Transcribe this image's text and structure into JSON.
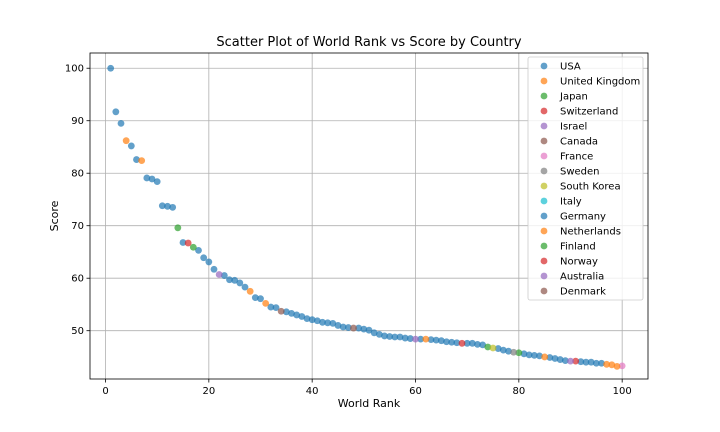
{
  "chart_data": {
    "type": "scatter",
    "title": "Scatter Plot of World Rank vs Score by Country",
    "xlabel": "World Rank",
    "ylabel": "Score",
    "xlim": [
      -3,
      105
    ],
    "ylim": [
      40.8,
      102.9
    ],
    "xticks": [
      0,
      20,
      40,
      60,
      80,
      100
    ],
    "yticks": [
      50,
      60,
      70,
      80,
      90,
      100
    ],
    "grid": true,
    "legend_position": "upper-right",
    "series": [
      {
        "name": "USA",
        "color": "#1f77b4",
        "points": [
          [
            1,
            100
          ],
          [
            2,
            91.7
          ],
          [
            3,
            89.5
          ],
          [
            5,
            85.2
          ],
          [
            6,
            82.6
          ],
          [
            8,
            79.1
          ],
          [
            9,
            78.9
          ],
          [
            10,
            78.4
          ],
          [
            11,
            73.8
          ],
          [
            12,
            73.7
          ],
          [
            13,
            73.5
          ],
          [
            15,
            66.8
          ],
          [
            18,
            65.3
          ],
          [
            19,
            63.9
          ],
          [
            20,
            63.1
          ],
          [
            21,
            61.7
          ],
          [
            23,
            60.5
          ],
          [
            24,
            59.7
          ],
          [
            25,
            59.6
          ],
          [
            26,
            59.1
          ],
          [
            27,
            58.3
          ],
          [
            29,
            56.3
          ],
          [
            30,
            56.1
          ],
          [
            32,
            54.5
          ],
          [
            33,
            54.4
          ],
          [
            35,
            53.6
          ],
          [
            36,
            53.3
          ],
          [
            37,
            53.0
          ],
          [
            38,
            52.7
          ],
          [
            39,
            52.3
          ],
          [
            40,
            52.1
          ],
          [
            41,
            51.9
          ],
          [
            42,
            51.6
          ],
          [
            43,
            51.5
          ],
          [
            44,
            51.4
          ],
          [
            45,
            51.0
          ],
          [
            46,
            50.7
          ],
          [
            47,
            50.6
          ],
          [
            49,
            50.5
          ],
          [
            50,
            50.3
          ],
          [
            51,
            50.1
          ],
          [
            52,
            49.6
          ],
          [
            53,
            49.3
          ],
          [
            54,
            49.0
          ],
          [
            55,
            48.9
          ],
          [
            56,
            48.8
          ],
          [
            57,
            48.8
          ],
          [
            58,
            48.6
          ],
          [
            59,
            48.5
          ],
          [
            61,
            48.4
          ],
          [
            63,
            48.3
          ],
          [
            64,
            48.2
          ],
          [
            65,
            48.1
          ],
          [
            66,
            47.9
          ],
          [
            67,
            47.8
          ],
          [
            68,
            47.7
          ],
          [
            70,
            47.6
          ],
          [
            71,
            47.6
          ],
          [
            72,
            47.4
          ],
          [
            73,
            47.3
          ],
          [
            76,
            46.6
          ],
          [
            77,
            46.3
          ],
          [
            78,
            46.1
          ],
          [
            81,
            45.6
          ],
          [
            82,
            45.4
          ],
          [
            83,
            45.3
          ],
          [
            84,
            45.2
          ],
          [
            86,
            44.9
          ],
          [
            87,
            44.7
          ],
          [
            88,
            44.5
          ],
          [
            89,
            44.3
          ],
          [
            92,
            44.1
          ],
          [
            93,
            44.0
          ],
          [
            94,
            44.0
          ],
          [
            95,
            43.8
          ],
          [
            96,
            43.8
          ]
        ]
      },
      {
        "name": "United Kingdom",
        "color": "#ff7f0e",
        "points": [
          [
            4,
            86.2
          ],
          [
            7,
            82.4
          ],
          [
            28,
            57.5
          ],
          [
            31,
            55.2
          ],
          [
            62,
            48.4
          ],
          [
            85,
            45.0
          ],
          [
            97,
            43.6
          ],
          [
            98,
            43.5
          ]
        ]
      },
      {
        "name": "Japan",
        "color": "#2ca02c",
        "points": [
          [
            14,
            69.6
          ],
          [
            17,
            65.9
          ],
          [
            74,
            46.9
          ],
          [
            80,
            45.8
          ]
        ]
      },
      {
        "name": "Switzerland",
        "color": "#d62728",
        "points": [
          [
            16,
            66.7
          ],
          [
            69,
            47.6
          ],
          [
            91,
            44.2
          ]
        ]
      },
      {
        "name": "Israel",
        "color": "#9467bd",
        "points": [
          [
            22,
            60.7
          ],
          [
            60,
            48.4
          ],
          [
            90,
            44.2
          ]
        ]
      },
      {
        "name": "Canada",
        "color": "#8c564b",
        "points": [
          [
            34,
            53.7
          ],
          [
            48,
            50.5
          ]
        ]
      },
      {
        "name": "France",
        "color": "#e377c2",
        "points": [
          [
            100,
            43.3
          ]
        ]
      },
      {
        "name": "Sweden",
        "color": "#7f7f7f",
        "points": [
          [
            79,
            45.9
          ]
        ]
      },
      {
        "name": "South Korea",
        "color": "#bcbd22",
        "points": [
          [
            75,
            46.7
          ]
        ]
      },
      {
        "name": "Italy",
        "color": "#17becf",
        "points": []
      },
      {
        "name": "Germany",
        "color": "#1f77b4",
        "points": []
      },
      {
        "name": "Netherlands",
        "color": "#ff7f0e",
        "points": [
          [
            99,
            43.2
          ]
        ]
      },
      {
        "name": "Finland",
        "color": "#2ca02c",
        "points": []
      },
      {
        "name": "Norway",
        "color": "#d62728",
        "points": []
      },
      {
        "name": "Australia",
        "color": "#9467bd",
        "points": []
      },
      {
        "name": "Denmark",
        "color": "#8c564b",
        "points": []
      }
    ]
  }
}
